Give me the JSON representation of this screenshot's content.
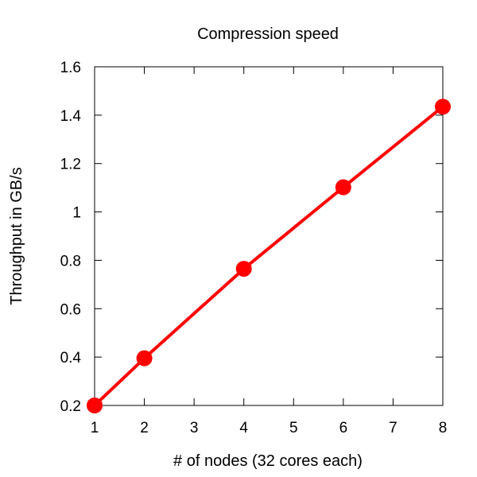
{
  "chart_data": {
    "type": "line",
    "title": "Compression speed",
    "xlabel": "# of nodes (32 cores each)",
    "ylabel": "Throughput in GB/s",
    "xlim": [
      1,
      8
    ],
    "ylim": [
      0.2,
      1.6
    ],
    "xticks": [
      1,
      2,
      3,
      4,
      5,
      6,
      7,
      8
    ],
    "yticks": [
      0.2,
      0.4,
      0.6,
      0.8,
      1,
      1.2,
      1.4,
      1.6
    ],
    "grid": false,
    "legend": "none",
    "series": [
      {
        "color": "#ff0000",
        "x": [
          1,
          2,
          4,
          6,
          8
        ],
        "y": [
          0.2,
          0.395,
          0.765,
          1.102,
          1.435
        ]
      }
    ]
  }
}
